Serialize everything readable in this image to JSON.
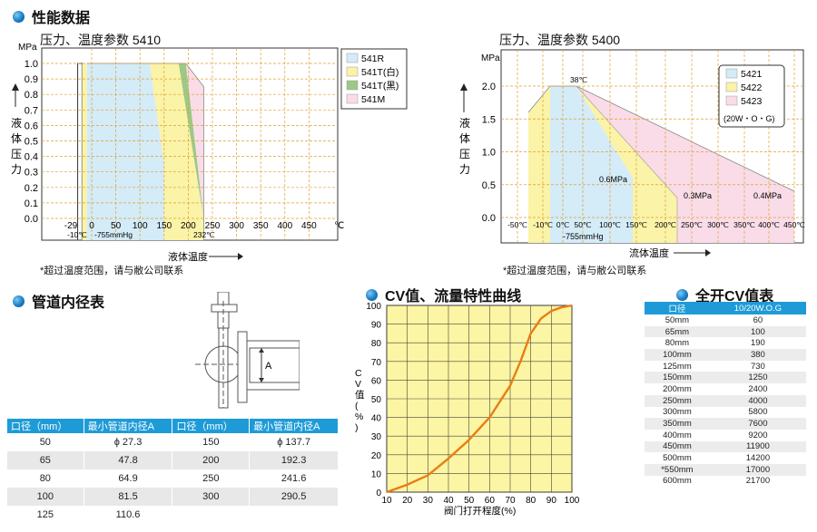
{
  "section_perf": "性能数据",
  "section_pipe": "管道内径表",
  "section_cv": "CV值、流量特性曲线",
  "section_full_cv": "全开CV值表",
  "colors": {
    "blue": "#d4ebf8",
    "yellow": "#faf3a8",
    "green": "#9cc985",
    "pink": "#f9dce8",
    "accent": "#1e9bd7",
    "curve": "#e87d15"
  },
  "chart_data": [
    {
      "type": "area",
      "title": "压力、温度参数 5410",
      "ylabel": "液体压力",
      "yunit": "MPa",
      "xlabel": "液体温度",
      "xunit": "℃",
      "ylim": [
        0,
        1.0
      ],
      "yticks": [
        "0.0",
        "0.1",
        "0.2",
        "0.3",
        "0.4",
        "0.5",
        "0.6",
        "0.7",
        "0.8",
        "0.9",
        "1.0"
      ],
      "xticks": [
        "-29",
        "0",
        "50",
        "100",
        "150",
        "200",
        "250",
        "300",
        "350",
        "400",
        "450"
      ],
      "xtick_unit": "℃",
      "annotations": [
        "-10℃",
        "-755mmHg",
        "232℃"
      ],
      "series": [
        {
          "name": "541R",
          "color": "#d4ebf8"
        },
        {
          "name": "541T(白)",
          "color": "#faf3a8"
        },
        {
          "name": "541T(黑)",
          "color": "#9cc985"
        },
        {
          "name": "541M",
          "color": "#f9dce8"
        }
      ]
    },
    {
      "type": "area",
      "title": "压力、温度参数 5400",
      "ylabel": "液体压力",
      "yunit": "MPa",
      "xlabel": "流体温度",
      "ylim": [
        0,
        2.0
      ],
      "yticks": [
        "0.0",
        "0.5",
        "1.0",
        "1.5",
        "2.0"
      ],
      "xticks": [
        "-50℃",
        "-10℃",
        "0℃",
        "50℃",
        "100℃",
        "150℃",
        "200℃",
        "250℃",
        "300℃",
        "350℃",
        "400℃",
        "450℃"
      ],
      "annotations": [
        "38℃",
        "0.6MPa",
        "0.3MPa",
        "0.4MPa",
        "-755mmHg"
      ],
      "series": [
        {
          "name": "5421",
          "color": "#d4ebf8"
        },
        {
          "name": "5422",
          "color": "#faf3a8"
        },
        {
          "name": "5423",
          "color": "#f9dce8"
        }
      ],
      "legend_note": "(20W・O・G)"
    },
    {
      "type": "line",
      "title": "CV值、流量特性曲线",
      "xlabel": "阀门打开程度(%)",
      "ylabel": "CV值(%)",
      "xlim": [
        10,
        100
      ],
      "ylim": [
        0,
        100
      ],
      "xticks": [
        "10",
        "20",
        "30",
        "40",
        "50",
        "60",
        "70",
        "80",
        "90",
        "100"
      ],
      "yticks": [
        "0",
        "10",
        "20",
        "30",
        "40",
        "50",
        "60",
        "70",
        "80",
        "90",
        "100"
      ],
      "x": [
        10,
        20,
        30,
        40,
        50,
        60,
        70,
        75,
        80,
        85,
        90,
        95,
        100
      ],
      "y": [
        0,
        4,
        9,
        18,
        28,
        40,
        57,
        70,
        85,
        93,
        97,
        99,
        100
      ]
    }
  ],
  "note": "*超过温度范围，请与敝公司联系",
  "diagram_label": "A",
  "pipe_table": {
    "headers": [
      "口径（mm）",
      "最小管道内径A",
      "口径（mm）",
      "最小管道内径A"
    ],
    "rows": [
      [
        "50",
        "ϕ 27.3",
        "150",
        "ϕ 137.7"
      ],
      [
        "65",
        "47.8",
        "200",
        "192.3"
      ],
      [
        "80",
        "64.9",
        "250",
        "241.6"
      ],
      [
        "100",
        "81.5",
        "300",
        "290.5"
      ],
      [
        "125",
        "110.6",
        "",
        ""
      ]
    ]
  },
  "cv_table": {
    "headers": [
      "口径",
      "10/20W.O.G"
    ],
    "rows": [
      [
        "50mm",
        "60"
      ],
      [
        "65mm",
        "100"
      ],
      [
        "80mm",
        "190"
      ],
      [
        "100mm",
        "380"
      ],
      [
        "125mm",
        "730"
      ],
      [
        "150mm",
        "1250"
      ],
      [
        "200mm",
        "2400"
      ],
      [
        "250mm",
        "4000"
      ],
      [
        "300mm",
        "5800"
      ],
      [
        "350mm",
        "7600"
      ],
      [
        "400mm",
        "9200"
      ],
      [
        "450mm",
        "11900"
      ],
      [
        "500mm",
        "14200"
      ],
      [
        "*550mm",
        "17000"
      ],
      [
        "600mm",
        "21700"
      ]
    ]
  }
}
